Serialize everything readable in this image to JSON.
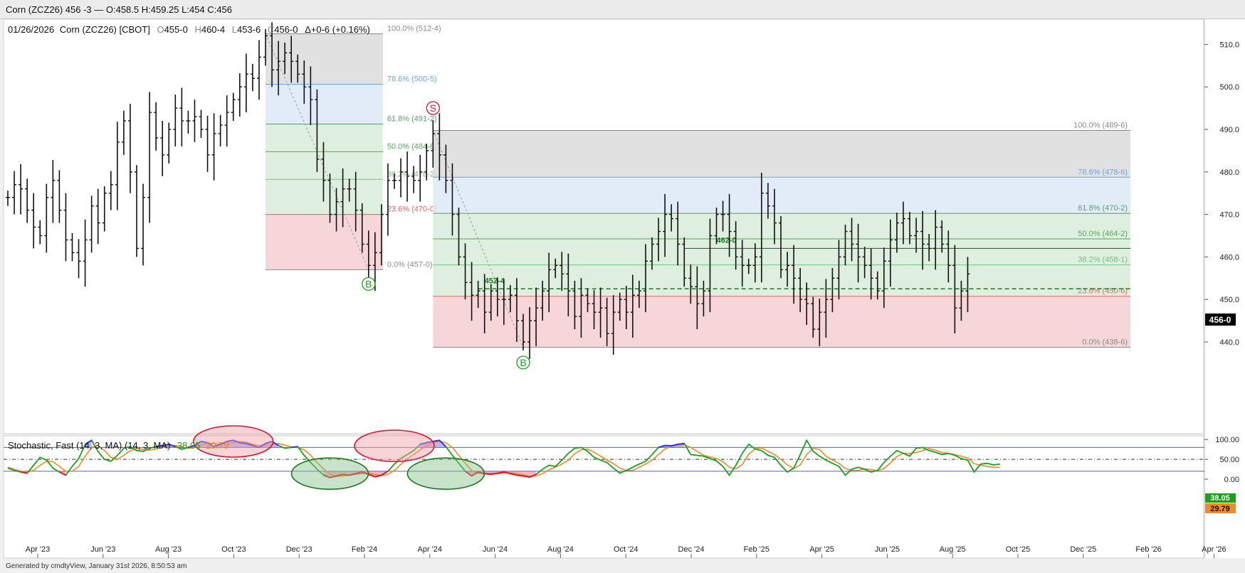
{
  "window": {
    "title": "Corn (ZCZ26) 456 -3 — O:458.5 H:459.25 L:454 C:456"
  },
  "header": {
    "date": "01/26/2026",
    "symbol": "Corn (ZCZ26) [CBOT]",
    "o_label": "O",
    "o": "455-0",
    "h_label": "H",
    "h": "460-4",
    "l_label": "L",
    "l": "453-6",
    "c_label": "C",
    "c": "456-0",
    "chg": "Δ+0-6 (+0.16%)"
  },
  "footer": {
    "text": "Generated by cmdtyView, January 31st 2026, 8:50:53 am"
  },
  "colors": {
    "up_fill": "#3131f0",
    "down_fill": "#e0102e",
    "fast": "#19a01c",
    "slow": "#f08a26",
    "fib_red": "#f4cfd1",
    "fib_green": "#d9ecd9",
    "fib_blue": "#dce9f7",
    "fib_gray": "#dcdcdc"
  },
  "chart_data": [
    {
      "type": "ohlc",
      "title": "",
      "x_ticks": [
        "Apr '23",
        "Jun '23",
        "Aug '23",
        "Oct '23",
        "Dec '23",
        "Feb '24",
        "Apr '24",
        "Jun '24",
        "Aug '24",
        "Oct '24",
        "Dec '24",
        "Feb '25",
        "Apr '25",
        "Jun '25",
        "Aug '25",
        "Oct '25",
        "Dec '25",
        "Feb '26",
        "Apr '26"
      ],
      "y_ticks": [
        "440.0",
        "450.0",
        "460.0",
        "470.0",
        "480.0",
        "490.0",
        "500.0",
        "510.0"
      ],
      "ylim": [
        436,
        514
      ],
      "last_price": "456-0",
      "weekly_close_path": [
        [
          0,
          474
        ],
        [
          1,
          477
        ],
        [
          2,
          476
        ],
        [
          3,
          471
        ],
        [
          4,
          467
        ],
        [
          5,
          465
        ],
        [
          6,
          474
        ],
        [
          7,
          478
        ],
        [
          8,
          471
        ],
        [
          9,
          464
        ],
        [
          10,
          461
        ],
        [
          11,
          459
        ],
        [
          12,
          464
        ],
        [
          13,
          472
        ],
        [
          14,
          468
        ],
        [
          15,
          475
        ],
        [
          16,
          477
        ],
        [
          17,
          487
        ],
        [
          18,
          492
        ],
        [
          19,
          480
        ],
        [
          20,
          462
        ],
        [
          21,
          474
        ],
        [
          22,
          494
        ],
        [
          23,
          488
        ],
        [
          24,
          484
        ],
        [
          25,
          490
        ],
        [
          26,
          495
        ],
        [
          27,
          492
        ],
        [
          28,
          492
        ],
        [
          29,
          493
        ],
        [
          30,
          490
        ],
        [
          31,
          484
        ],
        [
          32,
          489
        ],
        [
          33,
          491
        ],
        [
          34,
          494
        ],
        [
          35,
          497
        ],
        [
          36,
          500
        ],
        [
          37,
          503
        ],
        [
          38,
          502
        ],
        [
          39,
          507
        ],
        [
          40,
          512
        ],
        [
          41,
          504
        ],
        [
          42,
          506
        ],
        [
          43,
          508
        ],
        [
          44,
          506
        ],
        [
          45,
          503
        ],
        [
          46,
          500
        ],
        [
          47,
          497
        ],
        [
          48,
          483
        ],
        [
          49,
          478
        ],
        [
          50,
          470
        ],
        [
          51,
          473
        ],
        [
          52,
          476
        ],
        [
          53,
          476
        ],
        [
          54,
          471
        ],
        [
          55,
          463
        ],
        [
          56,
          458
        ],
        [
          57,
          461
        ],
        [
          58,
          470
        ],
        [
          59,
          478
        ],
        [
          60,
          478
        ],
        [
          61,
          480
        ],
        [
          62,
          479
        ],
        [
          63,
          478
        ],
        [
          64,
          480
        ],
        [
          65,
          485
        ],
        [
          66,
          489
        ],
        [
          67,
          484
        ],
        [
          68,
          478
        ],
        [
          69,
          470
        ],
        [
          70,
          460
        ],
        [
          71,
          454
        ],
        [
          72,
          451
        ],
        [
          73,
          452
        ],
        [
          74,
          447
        ],
        [
          75,
          452
        ],
        [
          76,
          450
        ],
        [
          77,
          450
        ],
        [
          78,
          451
        ],
        [
          79,
          445
        ],
        [
          80,
          440
        ],
        [
          81,
          445
        ],
        [
          82,
          448
        ],
        [
          83,
          452
        ],
        [
          84,
          457
        ],
        [
          85,
          458
        ],
        [
          86,
          456
        ],
        [
          87,
          452
        ],
        [
          88,
          446
        ],
        [
          89,
          451
        ],
        [
          90,
          449
        ],
        [
          91,
          447
        ],
        [
          92,
          448
        ],
        [
          93,
          442
        ],
        [
          94,
          447
        ],
        [
          95,
          450
        ],
        [
          96,
          447
        ],
        [
          97,
          451
        ],
        [
          98,
          452
        ],
        [
          99,
          459
        ],
        [
          100,
          463
        ],
        [
          101,
          466
        ],
        [
          102,
          470
        ],
        [
          103,
          469
        ],
        [
          104,
          463
        ],
        [
          105,
          455
        ],
        [
          106,
          453
        ],
        [
          107,
          449
        ],
        [
          108,
          452
        ],
        [
          109,
          465
        ],
        [
          110,
          470
        ],
        [
          111,
          470
        ],
        [
          112,
          466
        ],
        [
          113,
          460
        ],
        [
          114,
          458
        ],
        [
          115,
          458
        ],
        [
          116,
          460
        ],
        [
          117,
          475
        ],
        [
          118,
          472
        ],
        [
          119,
          468
        ],
        [
          120,
          457
        ],
        [
          121,
          458
        ],
        [
          122,
          455
        ],
        [
          123,
          450
        ],
        [
          124,
          449
        ],
        [
          125,
          443
        ],
        [
          126,
          447
        ],
        [
          127,
          450
        ],
        [
          128,
          455
        ],
        [
          129,
          460
        ],
        [
          130,
          466
        ],
        [
          131,
          463
        ],
        [
          132,
          460
        ],
        [
          133,
          458
        ],
        [
          134,
          455
        ],
        [
          135,
          452
        ],
        [
          136,
          459
        ],
        [
          137,
          464
        ],
        [
          138,
          468
        ],
        [
          139,
          469
        ],
        [
          140,
          465
        ],
        [
          141,
          466
        ],
        [
          142,
          463
        ],
        [
          143,
          462
        ],
        [
          144,
          467
        ],
        [
          145,
          463
        ],
        [
          146,
          458
        ],
        [
          147,
          448
        ],
        [
          148,
          452
        ],
        [
          149,
          456
        ]
      ],
      "fib_retracements": [
        {
          "swing_high": "512-4",
          "swing_low": "457-0",
          "levels": [
            {
              "label": "100.0% (512-4)",
              "value": 512.5
            },
            {
              "label": "78.6% (500-5)",
              "value": 500.625
            },
            {
              "label": "61.8% (491-2)",
              "value": 491.25
            },
            {
              "label": "50.0% (484-6)",
              "value": 484.75
            },
            {
              "label": "38.2% (478-2)",
              "value": 478.25
            },
            {
              "label": "23.6% (470-0)",
              "value": 470.0
            },
            {
              "label": "0.0% (457-0)",
              "value": 457.0
            }
          ]
        },
        {
          "swing_high": "489-6",
          "swing_low": "438-6",
          "levels": [
            {
              "label": "100.0% (489-6)",
              "value": 489.75
            },
            {
              "label": "78.6% (478-6)",
              "value": 478.75
            },
            {
              "label": "61.8% (470-2)",
              "value": 470.25
            },
            {
              "label": "50.0% (464-2)",
              "value": 464.25
            },
            {
              "label": "38.2% (458-1)",
              "value": 458.125
            },
            {
              "label": "23.6% (450-6)",
              "value": 450.75
            },
            {
              "label": "0.0% (438-6)",
              "value": 438.75
            }
          ]
        }
      ],
      "horizontal_lines": [
        {
          "label": "462-0",
          "value": 462.0,
          "style": "solid"
        },
        {
          "label": "452-4",
          "value": 452.5,
          "style": "dashed"
        }
      ],
      "signals": [
        {
          "mark": "S",
          "color": "#e0102e",
          "week": 40,
          "price": 513
        },
        {
          "mark": "B",
          "color": "#19a01c",
          "week": 56,
          "price": 457
        },
        {
          "mark": "S",
          "color": "#e0102e",
          "week": 66,
          "price": 490
        },
        {
          "mark": "B",
          "color": "#19a01c",
          "week": 80,
          "price": 438.5
        }
      ]
    },
    {
      "type": "line",
      "title": "Stochastic, Fast (14, 3, MA)  (14, 3, MA)",
      "current_fast": "38.05",
      "current_slow": "29.79",
      "y_ticks": [
        "0.00",
        "50.00",
        "100.00"
      ],
      "ylim": [
        -8,
        110
      ],
      "overbought": 80,
      "oversold": 20,
      "series": [
        {
          "name": "%K",
          "values": [
            28,
            22,
            18,
            15,
            35,
            55,
            48,
            28,
            18,
            10,
            32,
            52,
            88,
            98,
            70,
            50,
            45,
            60,
            78,
            82,
            72,
            70,
            78,
            82,
            85,
            88,
            82,
            75,
            80,
            85,
            95,
            92,
            82,
            88,
            95,
            98,
            92,
            90,
            85,
            80,
            90,
            95,
            85,
            78,
            80,
            82,
            60,
            42,
            25,
            10,
            4,
            8,
            12,
            10,
            14,
            18,
            12,
            6,
            10,
            20,
            38,
            52,
            62,
            72,
            88,
            92,
            95,
            98,
            82,
            60,
            40,
            20,
            8,
            18,
            14,
            12,
            15,
            18,
            14,
            10,
            8,
            5,
            12,
            25,
            35,
            32,
            48,
            65,
            78,
            80,
            70,
            55,
            48,
            42,
            28,
            15,
            22,
            30,
            38,
            45,
            62,
            80,
            85,
            84,
            88,
            90,
            62,
            60,
            58,
            52,
            46,
            32,
            10,
            35,
            65,
            88,
            76,
            72,
            60,
            55,
            35,
            18,
            28,
            62,
            98,
            70,
            58,
            48,
            40,
            32,
            10,
            25,
            30,
            25,
            18,
            22,
            42,
            58,
            72,
            65,
            58,
            78,
            80,
            72,
            68,
            62,
            65,
            60,
            52,
            48,
            18,
            38,
            40,
            36,
            38
          ]
        },
        {
          "name": "%D",
          "values": [
            30,
            25,
            20,
            18,
            22,
            35,
            45,
            44,
            32,
            20,
            20,
            32,
            58,
            80,
            85,
            72,
            55,
            50,
            60,
            72,
            77,
            75,
            73,
            76,
            80,
            84,
            85,
            82,
            78,
            80,
            86,
            90,
            90,
            88,
            88,
            92,
            95,
            93,
            88,
            85,
            85,
            88,
            90,
            86,
            81,
            80,
            74,
            60,
            42,
            26,
            13,
            7,
            8,
            10,
            12,
            14,
            15,
            12,
            9,
            12,
            22,
            37,
            51,
            62,
            74,
            84,
            92,
            95,
            92,
            80,
            60,
            40,
            22,
            15,
            13,
            15,
            14,
            15,
            16,
            14,
            11,
            8,
            8,
            14,
            24,
            30,
            38,
            48,
            64,
            74,
            76,
            68,
            58,
            48,
            39,
            28,
            22,
            22,
            30,
            38,
            48,
            62,
            76,
            83,
            86,
            87,
            80,
            70,
            60,
            56,
            52,
            44,
            30,
            26,
            37,
            63,
            76,
            79,
            70,
            62,
            50,
            36,
            27,
            36,
            62,
            77,
            75,
            58,
            48,
            40,
            27,
            22,
            22,
            26,
            24,
            21,
            27,
            41,
            57,
            65,
            65,
            67,
            72,
            77,
            73,
            67,
            65,
            62,
            58,
            53,
            39,
            35,
            32,
            30,
            30
          ]
        }
      ]
    }
  ]
}
